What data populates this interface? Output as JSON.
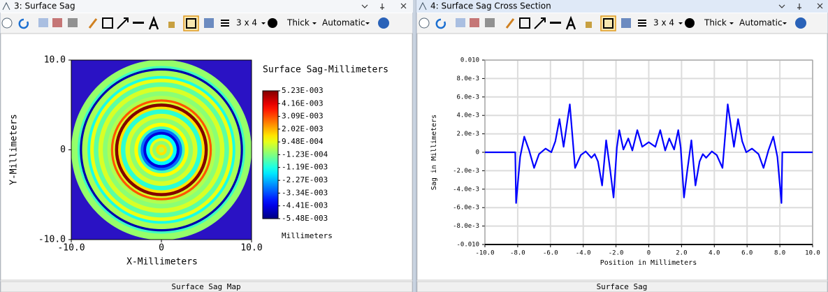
{
  "windows": [
    {
      "title": "3: Surface Sag",
      "toolbar": {
        "layout": "3 x 4",
        "line_width": "Thick",
        "scale": "Automatic"
      },
      "tab": "Surface Sag Map"
    },
    {
      "title": "4: Surface Sag Cross Section",
      "toolbar": {
        "layout": "3 x 4",
        "line_width": "Thick",
        "scale": "Automatic"
      },
      "tab": "Surface Sag"
    }
  ],
  "chart_data": [
    {
      "type": "map",
      "title": "Surface Sag-Millimeters",
      "xlabel": "X-Millimeters",
      "ylabel": "Y-Millimeters",
      "colorbar_label": "Millimeters",
      "colormap": "jet",
      "background": "#2a12c4",
      "xlim": [
        -10,
        10
      ],
      "ylim": [
        -10,
        10
      ],
      "xticks": [
        {
          "value": -10,
          "label": "-10.0"
        },
        0,
        {
          "value": 10,
          "label": "10.0"
        }
      ],
      "yticks": [
        {
          "value": 10,
          "label": "10.0"
        },
        0,
        {
          "value": -10,
          "label": "-10.0"
        }
      ],
      "colorbar_ticks": [
        {
          "value": 0.00523,
          "label": "5.23E-003"
        },
        {
          "value": 0.00416,
          "label": "4.16E-003"
        },
        {
          "value": 0.00309,
          "label": "3.09E-003"
        },
        {
          "value": 0.00202,
          "label": "2.02E-003"
        },
        {
          "value": 0.000948,
          "label": "9.48E-004"
        },
        {
          "value": -0.000123,
          "label": "-1.23E-004"
        },
        {
          "value": -0.00119,
          "label": "-1.19E-003"
        },
        {
          "value": -0.00227,
          "label": "-2.27E-003"
        },
        {
          "value": -0.00334,
          "label": "-3.34E-003"
        },
        {
          "value": -0.00441,
          "label": "-4.41E-003"
        },
        {
          "value": -0.00548,
          "label": "-5.48E-003"
        }
      ],
      "r": [
        10,
        9.3,
        9.05,
        8.8,
        8.2,
        7.9,
        7.5,
        7.0,
        6.5,
        6.0,
        5.6,
        5.35,
        5.15,
        4.8,
        4.5,
        4.0,
        3.5,
        3.0,
        2.6,
        2.3,
        2.0,
        1.7,
        1.3,
        1.0,
        0.6,
        0.3
      ],
      "values": [
        0.0001,
        -0.0008,
        -0.005,
        0.0003,
        -0.0012,
        0.001,
        -0.0005,
        0.0008,
        0,
        0.0004,
        0.003,
        0.0008,
        0.0052,
        0.0015,
        -0.001,
        0.0008,
        0,
        0.0012,
        -0.0008,
        -0.003,
        -0.0045,
        -0.0015,
        0.001,
        0,
        0.0015,
        0.0005
      ]
    },
    {
      "type": "line",
      "xlabel": "Position in Millimeters",
      "ylabel": "Sag in Millimeters",
      "grid": true,
      "color": "#0000ff",
      "xlim": [
        -10,
        10
      ],
      "ylim": [
        -0.01,
        0.01
      ],
      "xticks": [
        {
          "value": -10,
          "label": "-10.0"
        },
        {
          "value": -8,
          "label": "-8.0"
        },
        {
          "value": -6,
          "label": "-6.0"
        },
        {
          "value": -4,
          "label": "-4.0"
        },
        {
          "value": -2,
          "label": "-2.0"
        },
        0,
        {
          "value": 2,
          "label": "2.0"
        },
        {
          "value": 4,
          "label": "4.0"
        },
        {
          "value": 6,
          "label": "6.0"
        },
        {
          "value": 8,
          "label": "8.0"
        },
        {
          "value": 10,
          "label": "10.0"
        }
      ],
      "yticks": [
        {
          "value": 0.01,
          "label": "0.010"
        },
        {
          "value": 0.008,
          "label": "8.0e-3"
        },
        {
          "value": 0.006,
          "label": "6.0e-3"
        },
        {
          "value": 0.004,
          "label": "4.0e-3"
        },
        {
          "value": 0.002,
          "label": "2.0e-3"
        },
        0,
        {
          "value": -0.002,
          "label": "-2.0e-3"
        },
        {
          "value": -0.004,
          "label": "-4.0e-3"
        },
        {
          "value": -0.006,
          "label": "-6.0e-3"
        },
        {
          "value": -0.008,
          "label": "-8.0e-3"
        },
        {
          "value": -0.01,
          "label": "-0.010"
        }
      ],
      "x": [
        -10,
        -8.15,
        -8.1,
        -7.85,
        -7.6,
        -7.3,
        -7,
        -6.7,
        -6.3,
        -5.95,
        -5.7,
        -5.45,
        -5.2,
        -4.82,
        -4.5,
        -4.15,
        -3.85,
        -3.5,
        -3.3,
        -3.1,
        -2.85,
        -2.6,
        -2.35,
        -2.15,
        -1.95,
        -1.8,
        -1.55,
        -1.25,
        -1,
        -0.7,
        -0.4,
        0,
        0.4,
        0.7,
        1,
        1.25,
        1.55,
        1.8,
        1.95,
        2.15,
        2.35,
        2.6,
        2.85,
        3.1,
        3.3,
        3.5,
        3.85,
        4.15,
        4.5,
        4.82,
        5.2,
        5.45,
        5.7,
        5.95,
        6.3,
        6.7,
        7,
        7.3,
        7.6,
        7.85,
        8.1,
        8.15,
        10
      ],
      "values": [
        0,
        0,
        -0.0055,
        -0.0005,
        0.0017,
        0.0002,
        -0.0017,
        -0.0002,
        0.0004,
        0,
        0.0012,
        0.0036,
        0.0006,
        0.0052,
        -0.0017,
        -0.0003,
        0.0001,
        -0.0006,
        -0.0002,
        -0.001,
        -0.0036,
        0.0013,
        -0.002,
        -0.0049,
        0.0005,
        0.0024,
        0.0003,
        0.0015,
        0.0002,
        0.0024,
        0.0006,
        0.0011,
        0.0006,
        0.0024,
        0.0002,
        0.0015,
        0.0003,
        0.0024,
        0.0005,
        -0.0049,
        -0.002,
        0.0013,
        -0.0036,
        -0.001,
        -0.0002,
        -0.0006,
        0.0001,
        -0.0003,
        -0.0017,
        0.0052,
        0.0006,
        0.0036,
        0.0012,
        0,
        0.0004,
        -0.0002,
        -0.0017,
        0.0002,
        0.0017,
        -0.0005,
        -0.0055,
        0,
        0
      ]
    }
  ]
}
